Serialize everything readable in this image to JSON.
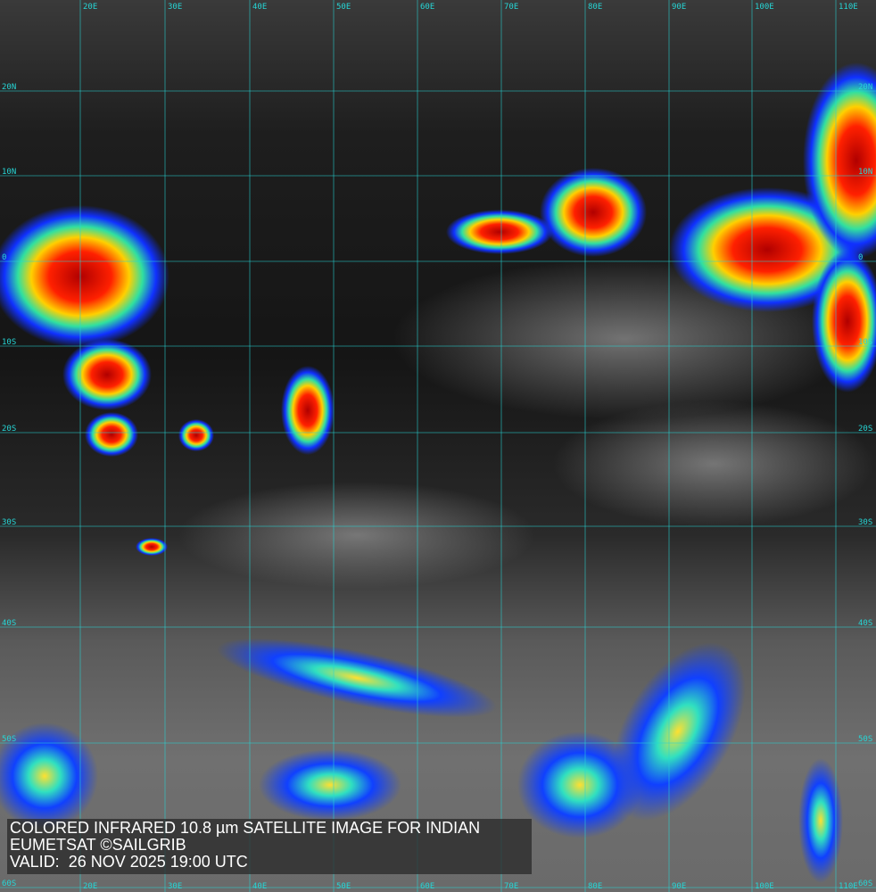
{
  "caption": {
    "line1": "COLORED INFRARED 10.8 µm SATELLITE IMAGE FOR INDIAN",
    "line2": "EUMETSAT ©SAILGRIB",
    "line3": "VALID:  26 NOV 2025 19:00 UTC"
  },
  "grid": {
    "longitudes": [
      "20E",
      "30E",
      "40E",
      "50E",
      "60E",
      "70E",
      "80E",
      "90E",
      "100E",
      "110E"
    ],
    "latitudes": [
      "20N",
      "10N",
      "0",
      "10S",
      "20S",
      "30S",
      "40S",
      "50S",
      "60S"
    ],
    "line_color": "#26d6d6"
  },
  "colors": {
    "cold_tops": "#c00000",
    "mid": "#ffd000",
    "low": "#1030ff"
  }
}
